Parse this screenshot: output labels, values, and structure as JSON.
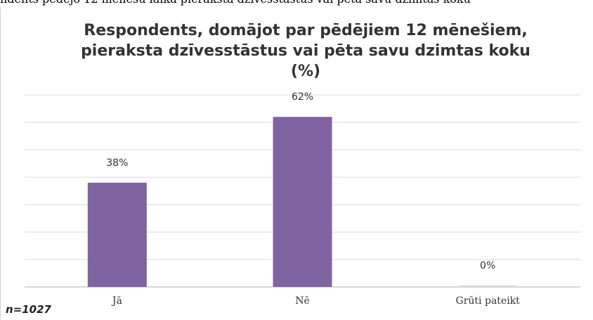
{
  "header_strip": "ndents pēdējo 12 mēnešu laikā pieraksta dzīvesstāstus vai pēta savu dzimtas koku",
  "colors": {
    "bar": "#8064a2",
    "zero_bar": "#d9d9d9",
    "grid": "#d9d9d9",
    "axis": "#bfbfbf"
  },
  "chart_data": {
    "type": "bar",
    "title": "Respondents, domājot par pēdējiem 12 mēnešiem,\npieraksta dzīvesstāstus vai pēta savu dzimtas koku\n(%)",
    "categories": [
      "Jā",
      "Nē",
      "Grūti pateikt"
    ],
    "values": [
      38,
      62,
      0
    ],
    "data_labels": [
      "38%",
      "62%",
      "0%"
    ],
    "ylim": [
      0,
      70
    ],
    "grid": true,
    "legend": "none"
  },
  "sample_note": "n=1027"
}
